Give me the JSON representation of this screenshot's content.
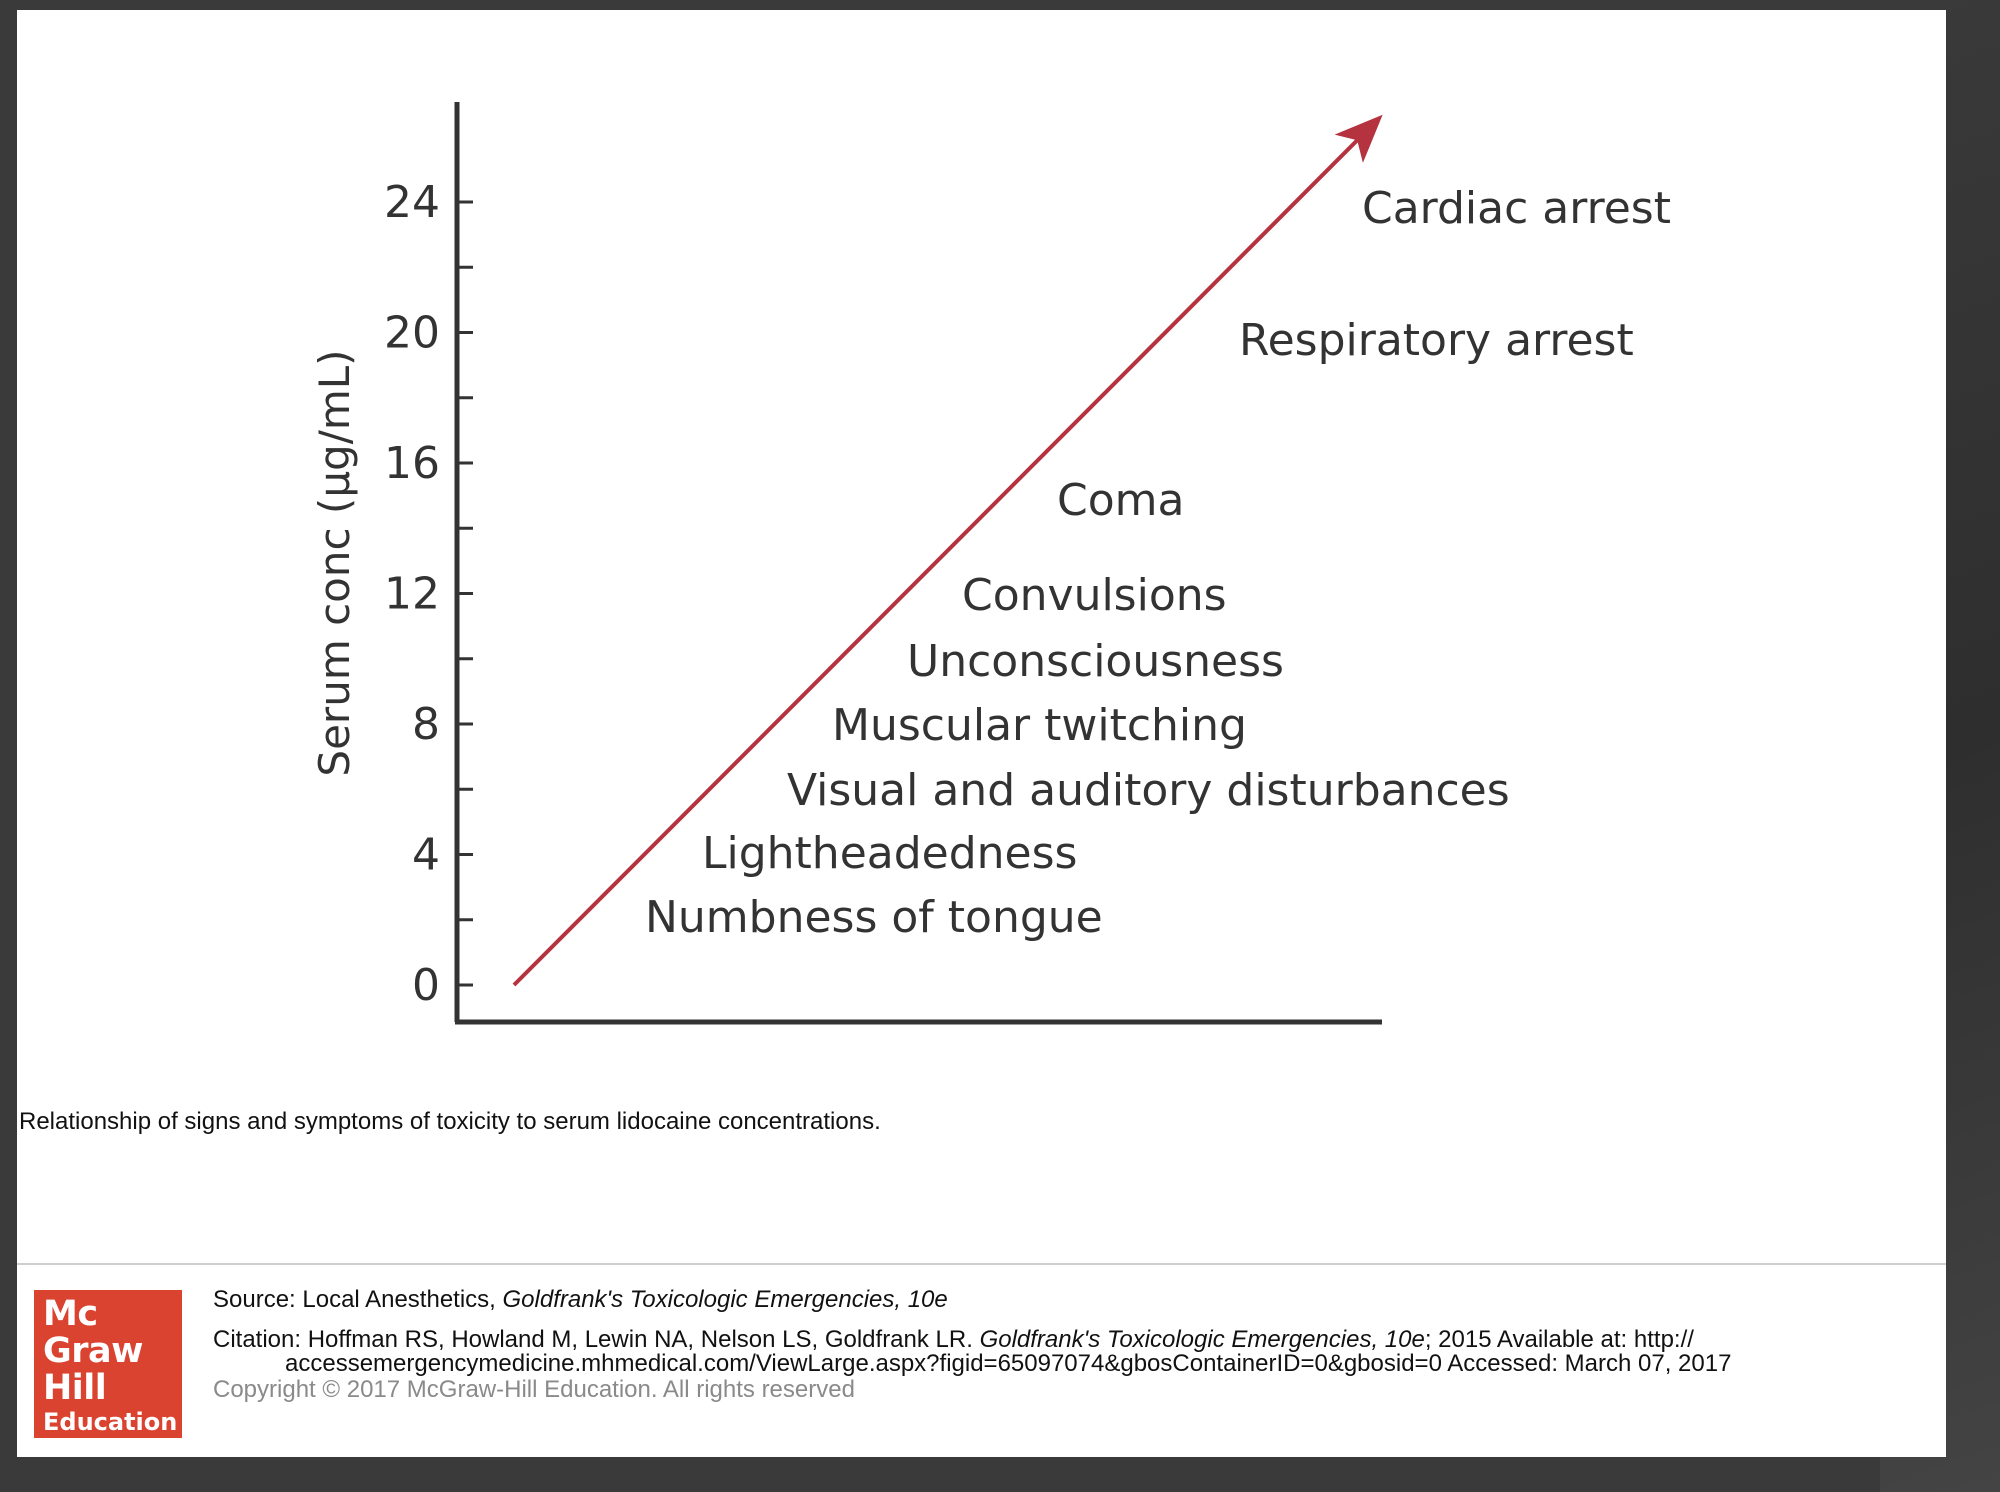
{
  "chart_data": {
    "type": "line",
    "ylabel": "Serum conc (μg/mL)",
    "xlabel": "",
    "yticks": [
      0,
      4,
      8,
      12,
      16,
      20,
      24
    ],
    "ylim": [
      0,
      24
    ],
    "grid": false,
    "series": [
      {
        "x": [
          0,
          1
        ],
        "y": [
          0,
          26.5
        ]
      }
    ],
    "annotations": [
      {
        "text": "Numbness of tongue",
        "y": 2
      },
      {
        "text": "Lightheadedness",
        "y": 4
      },
      {
        "text": "Visual and auditory disturbances",
        "y": 6
      },
      {
        "text": "Muscular twitching",
        "y": 8
      },
      {
        "text": "Unconsciousness",
        "y": 10
      },
      {
        "text": "Convulsions",
        "y": 12
      },
      {
        "text": "Coma",
        "y": 15
      },
      {
        "text": "Respiratory arrest",
        "y": 20
      },
      {
        "text": "Cardiac arrest",
        "y": 24
      }
    ]
  },
  "caption": "Relationship of signs and symptoms of toxicity to serum lidocaine concentrations.",
  "footer": {
    "source_prefix": "Source: Local Anesthetics, ",
    "source_title": "Goldfrank's Toxicologic Emergencies, 10e",
    "citation_prefix": "Citation: Hoffman RS, Howland M, Lewin NA, Nelson LS, Goldfrank LR. ",
    "citation_title": "Goldfrank's Toxicologic Emergencies, 10e",
    "citation_suffix": "; 2015 Available at: http://",
    "citation_line2": "accessemergencymedicine.mhmedical.com/ViewLarge.aspx?figid=65097074&gbosContainerID=0&gbosid=0 Accessed: March 07, 2017",
    "copyright": "Copyright © 2017 McGraw-Hill Education. All rights reserved"
  },
  "logo": {
    "lines": [
      "Mc",
      "Graw",
      "Hill",
      "Education"
    ]
  },
  "colors": {
    "arrow": "#b5323f",
    "axis": "#333333",
    "logo_bg": "#d9432f"
  }
}
